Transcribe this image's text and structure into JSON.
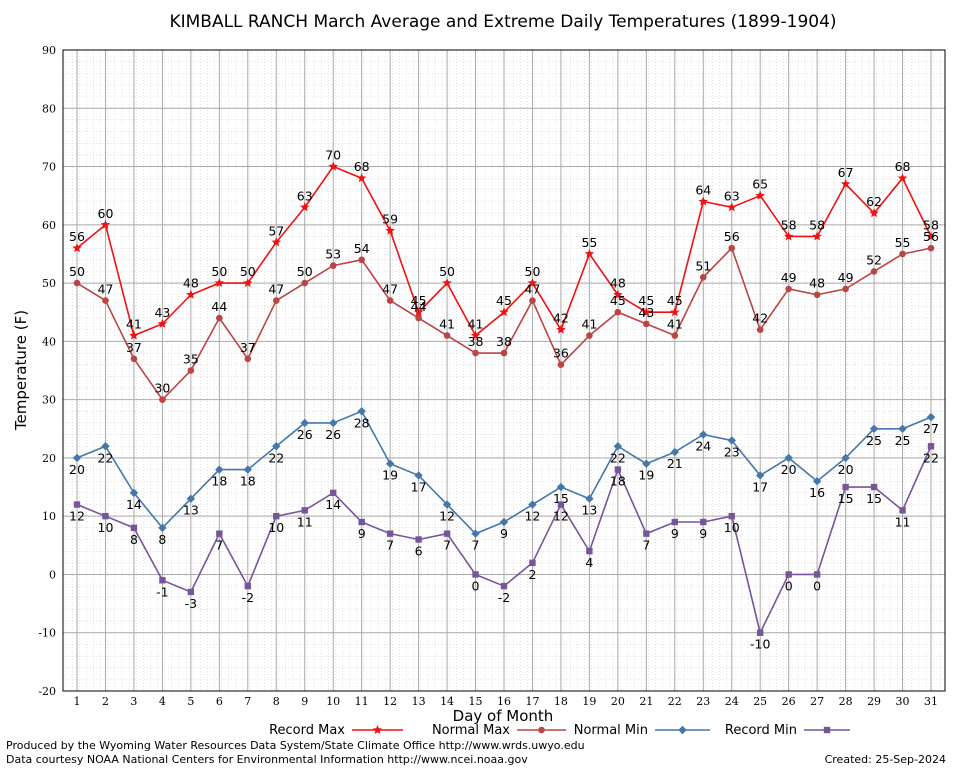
{
  "chart_data": {
    "type": "line",
    "title": "KIMBALL RANCH March Average and Extreme Daily Temperatures (1899-1904)",
    "xlabel": "Day of Month",
    "ylabel": "Temperature (F)",
    "ylim": [
      -20,
      90
    ],
    "yticks": [
      -20,
      -10,
      0,
      10,
      20,
      30,
      40,
      50,
      60,
      70,
      80,
      90
    ],
    "categories": [
      "1",
      "2",
      "3",
      "4",
      "5",
      "6",
      "7",
      "8",
      "9",
      "10",
      "11",
      "12",
      "13",
      "14",
      "15",
      "16",
      "17",
      "18",
      "19",
      "20",
      "21",
      "22",
      "23",
      "24",
      "25",
      "26",
      "27",
      "28",
      "29",
      "30",
      "31"
    ],
    "grid": true,
    "legend_position": "bottom",
    "series": [
      {
        "name": "Record Max",
        "color": "#ee1111",
        "marker": "star",
        "label_pos": "above",
        "values": [
          56,
          60,
          41,
          43,
          48,
          50,
          50,
          57,
          63,
          70,
          68,
          59,
          45,
          50,
          41,
          45,
          50,
          42,
          55,
          48,
          45,
          45,
          64,
          63,
          65,
          58,
          58,
          67,
          62,
          68,
          58
        ]
      },
      {
        "name": "Normal Max",
        "color": "#bb4444",
        "marker": "circle",
        "label_pos": "above",
        "values": [
          50,
          47,
          37,
          30,
          35,
          44,
          37,
          47,
          50,
          53,
          54,
          47,
          44,
          41,
          38,
          38,
          47,
          36,
          41,
          45,
          43,
          41,
          51,
          56,
          42,
          49,
          48,
          49,
          52,
          55,
          56
        ]
      },
      {
        "name": "Normal Min",
        "color": "#4477aa",
        "marker": "diamond",
        "label_pos": "below",
        "values": [
          20,
          22,
          14,
          8,
          13,
          18,
          18,
          22,
          26,
          26,
          28,
          19,
          17,
          12,
          7,
          9,
          12,
          15,
          13,
          22,
          19,
          21,
          24,
          23,
          17,
          20,
          16,
          20,
          25,
          25,
          27
        ]
      },
      {
        "name": "Record Min",
        "color": "#775599",
        "marker": "square",
        "label_pos": "below",
        "values": [
          12,
          10,
          8,
          -1,
          -3,
          7,
          -2,
          10,
          11,
          14,
          9,
          7,
          6,
          7,
          0,
          -2,
          2,
          12,
          4,
          18,
          7,
          9,
          9,
          10,
          -10,
          0,
          0,
          15,
          15,
          11,
          22
        ]
      }
    ]
  },
  "footer": {
    "line1": "Produced by the Wyoming Water Resources Data System/State Climate Office http://www.wrds.uwyo.edu",
    "line2": "Data courtesy NOAA National Centers for Environmental Information http://www.ncei.noaa.gov",
    "created": "Created:  25-Sep-2024"
  }
}
